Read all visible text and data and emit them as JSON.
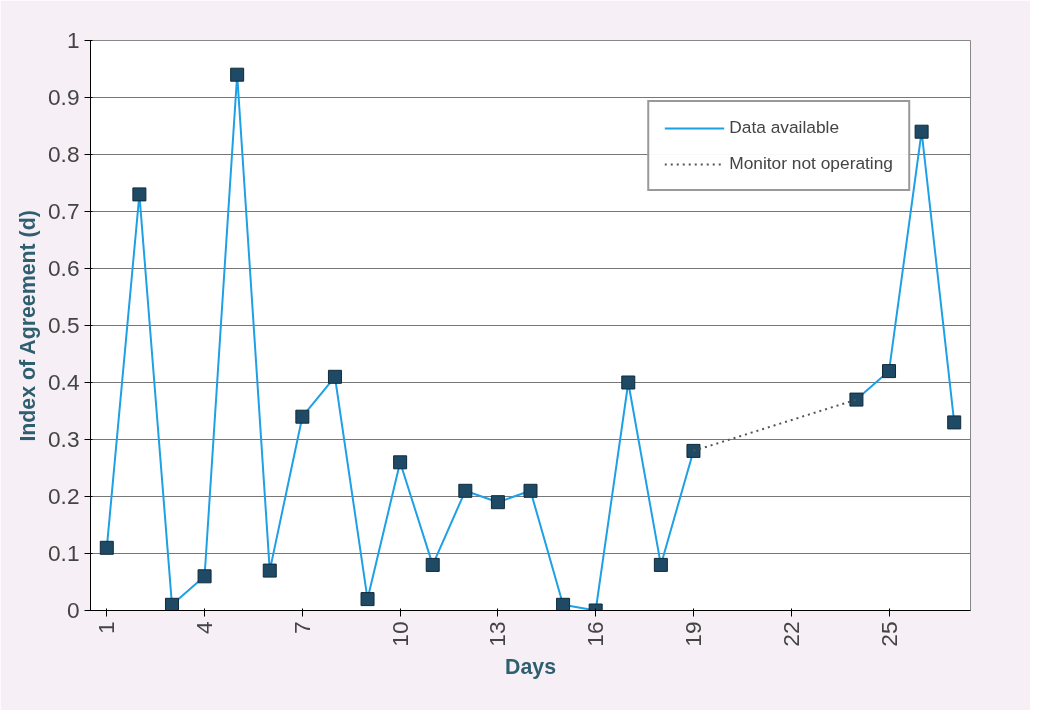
{
  "chart_data": {
    "type": "line",
    "xlabel": "Days",
    "ylabel": "Index of Agreement (d)",
    "xlim": [
      0.5,
      27.5
    ],
    "xticks": [
      1,
      4,
      7,
      10,
      13,
      16,
      19,
      22,
      25
    ],
    "ylim": [
      0,
      1
    ],
    "yticks": [
      0,
      0.1,
      0.2,
      0.3,
      0.4,
      0.5,
      0.6,
      0.7,
      0.8,
      0.9,
      1
    ],
    "grid": "y",
    "legend": "top right",
    "series": [
      {
        "name": "Data available",
        "color": "#1ea0e6",
        "marker": "square",
        "line_style": "solid",
        "x": [
          1,
          2,
          3,
          4,
          5,
          6,
          7,
          8,
          9,
          10,
          11,
          12,
          13,
          14,
          15,
          16,
          17,
          18,
          19,
          20,
          21,
          22,
          23,
          24,
          25,
          26,
          27
        ],
        "values": [
          0.11,
          0.73,
          0.01,
          0.06,
          0.94,
          0.07,
          0.34,
          0.41,
          0.02,
          0.26,
          0.08,
          0.21,
          0.19,
          0.21,
          0.01,
          0.0,
          0.4,
          0.08,
          0.28,
          null,
          null,
          null,
          null,
          0.37,
          0.42,
          0.84,
          0.33
        ]
      },
      {
        "name": "Monitor not operating",
        "color": "#555555",
        "marker": "none",
        "line_style": "dotted",
        "x": [
          19,
          24
        ],
        "values": [
          0.28,
          0.37
        ]
      }
    ]
  }
}
